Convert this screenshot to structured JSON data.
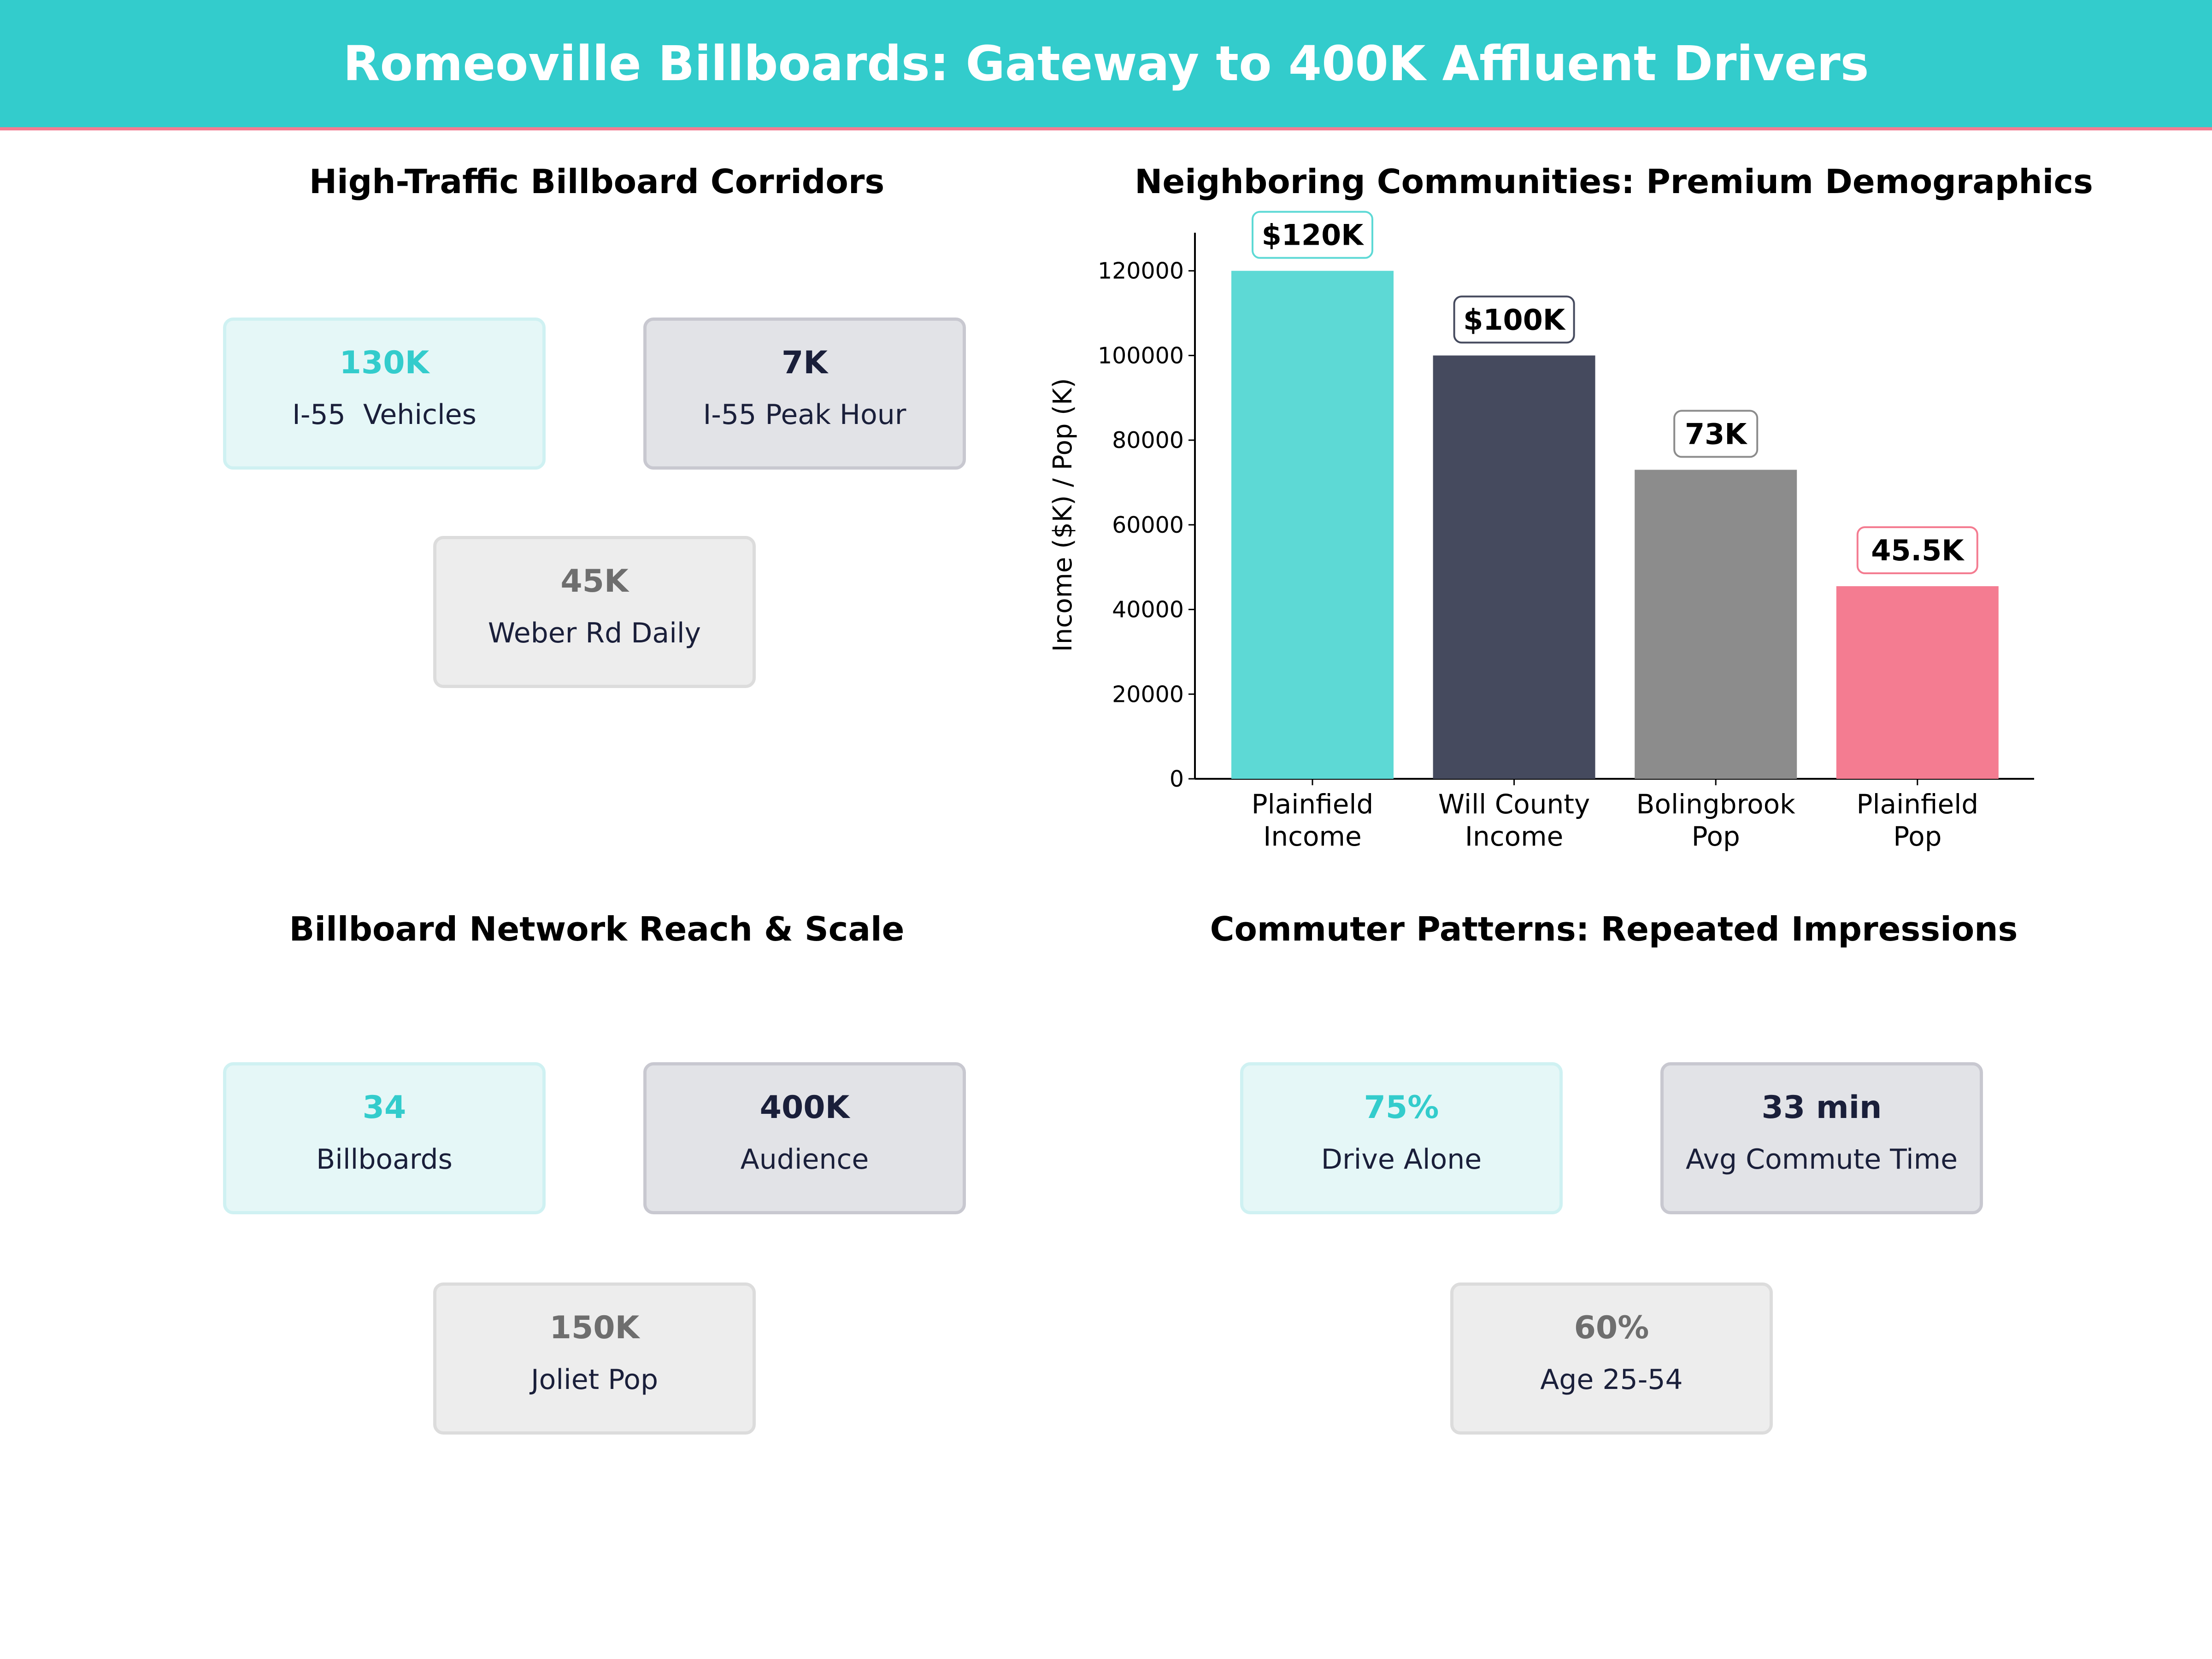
{
  "header": {
    "title": "Romeoville Billboards: Gateway to 400K Affluent Drivers",
    "color": "#33CCCC",
    "accent": "#F47C91"
  },
  "panels": [
    {
      "title": "High-Traffic Billboard Corridors",
      "cards": [
        {
          "value": "130K",
          "label": "I-55  Vehicles"
        },
        {
          "value": "7K",
          "label": "I-55 Peak Hour"
        },
        {
          "value": "45K",
          "label": "Weber Rd Daily"
        }
      ]
    },
    {
      "title": "Billboard Network Reach & Scale",
      "cards": [
        {
          "value": "34",
          "label": "Billboards"
        },
        {
          "value": "400K",
          "label": "Audience"
        },
        {
          "value": "150K",
          "label": "Joliet Pop"
        }
      ]
    },
    {
      "title": "Commuter Patterns: Repeated Impressions",
      "cards": [
        {
          "value": "75%",
          "label": "Drive Alone"
        },
        {
          "value": "33 min",
          "label": "Avg Commute Time"
        },
        {
          "value": "60%",
          "label": "Age 25-54"
        }
      ]
    }
  ],
  "chart_data": {
    "type": "bar",
    "title": "Neighboring Communities: Premium Demographics",
    "categories": [
      "Plainfield\nIncome",
      "Will County\nIncome",
      "Bolingbrook\nPop",
      "Plainfield\nPop"
    ],
    "values": [
      120000,
      100000,
      73000,
      45500
    ],
    "data_labels": [
      "$120K",
      "$100K",
      "73K",
      "45.5K"
    ],
    "colors": [
      "#5DD9D5",
      "#454A5E",
      "#8C8C8C",
      "#F47C91"
    ],
    "label_borders": [
      "#5DD9D5",
      "#454A5E",
      "#8C8C8C",
      "#F47C91"
    ],
    "xlabel": "",
    "ylabel": "Income ($K) / Pop (K)",
    "ylim": [
      0,
      129000
    ],
    "yticks": [
      0,
      20000,
      40000,
      60000,
      80000,
      100000,
      120000
    ],
    "grid": false
  }
}
